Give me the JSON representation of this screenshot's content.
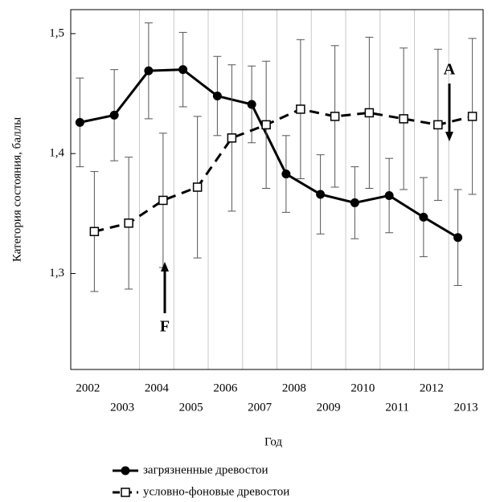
{
  "chart_data": {
    "type": "line",
    "x_label": "Год",
    "y_label": "Категория состояния, баллы",
    "categories": [
      "2002",
      "2003",
      "2004",
      "2005",
      "2006",
      "2007",
      "2008",
      "2009",
      "2010",
      "2011",
      "2012",
      "2013"
    ],
    "series": [
      {
        "name": "загрязненные древостои",
        "color": "#000000",
        "dashed": false,
        "marker": "circle",
        "values": [
          1.426,
          1.432,
          1.469,
          1.47,
          1.448,
          1.441,
          1.383,
          1.366,
          1.359,
          1.365,
          1.347,
          1.33
        ],
        "errors": [
          0.037,
          0.038,
          0.04,
          0.031,
          0.033,
          0.032,
          0.032,
          0.033,
          0.03,
          0.031,
          0.033,
          0.04
        ]
      },
      {
        "name": "условно-фоновые древостои",
        "color": "#000000",
        "dashed": true,
        "marker": "square",
        "values": [
          1.335,
          1.342,
          1.361,
          1.372,
          1.413,
          1.424,
          1.437,
          1.431,
          1.434,
          1.429,
          1.424,
          1.431
        ],
        "errors": [
          0.05,
          0.055,
          0.056,
          0.059,
          0.061,
          0.053,
          0.058,
          0.059,
          0.063,
          0.059,
          0.063,
          0.065
        ]
      }
    ],
    "annotations": [
      "A",
      "F"
    ],
    "ylim": [
      1.22,
      1.52
    ],
    "yticks": [
      {
        "value": 1.3,
        "label": "1,3"
      },
      {
        "value": 1.4,
        "label": "1,4"
      },
      {
        "value": 1.5,
        "label": "1,5"
      }
    ],
    "grid": true
  }
}
